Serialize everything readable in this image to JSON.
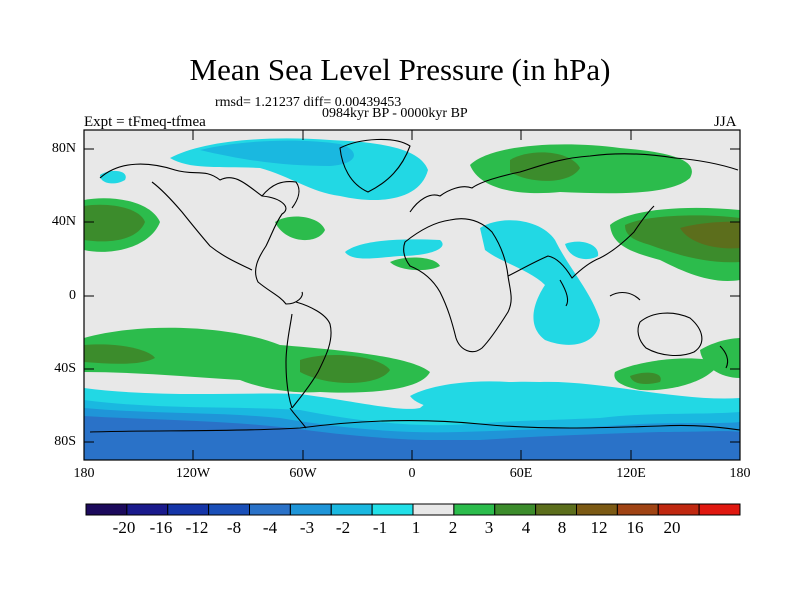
{
  "title": "Mean Sea Level Pressure (in hPa)",
  "stats_line": "rmsd= 1.21237 diff= 0.00439453",
  "period_line": "0984kyr BP - 0000kyr BP",
  "experiment_label": "Expt = tFmeq-tfmea",
  "season_label": "JJA",
  "lat_labels": [
    "80N",
    "40N",
    "0",
    "40S",
    "80S"
  ],
  "lon_labels": [
    "180",
    "120W",
    "60W",
    "0",
    "60E",
    "120E",
    "180"
  ],
  "colorbar": {
    "labels": [
      "-20",
      "-16",
      "-12",
      "-8",
      "-4",
      "-3",
      "-2",
      "-1",
      "1",
      "2",
      "3",
      "4",
      "8",
      "12",
      "16",
      "20"
    ],
    "colors": [
      "#1c0a5c",
      "#1a1a8c",
      "#1535a8",
      "#1a4fb8",
      "#2a72c8",
      "#1f95d8",
      "#1ab8e0",
      "#22e0e8",
      "#e8e8e8",
      "#2cbc4c",
      "#3c8c2c",
      "#5c6e1c",
      "#7c5a14",
      "#a04414",
      "#c02810",
      "#e01810"
    ]
  },
  "colors": {
    "background": "#e8e8e8",
    "neg1": "#22d8e4",
    "neg2": "#1ab8e0",
    "neg3": "#1f95d8",
    "neg4": "#2a72c8",
    "pos1": "#2cbc4c",
    "pos2": "#3c8c2c",
    "pos3": "#5c6e1c"
  }
}
